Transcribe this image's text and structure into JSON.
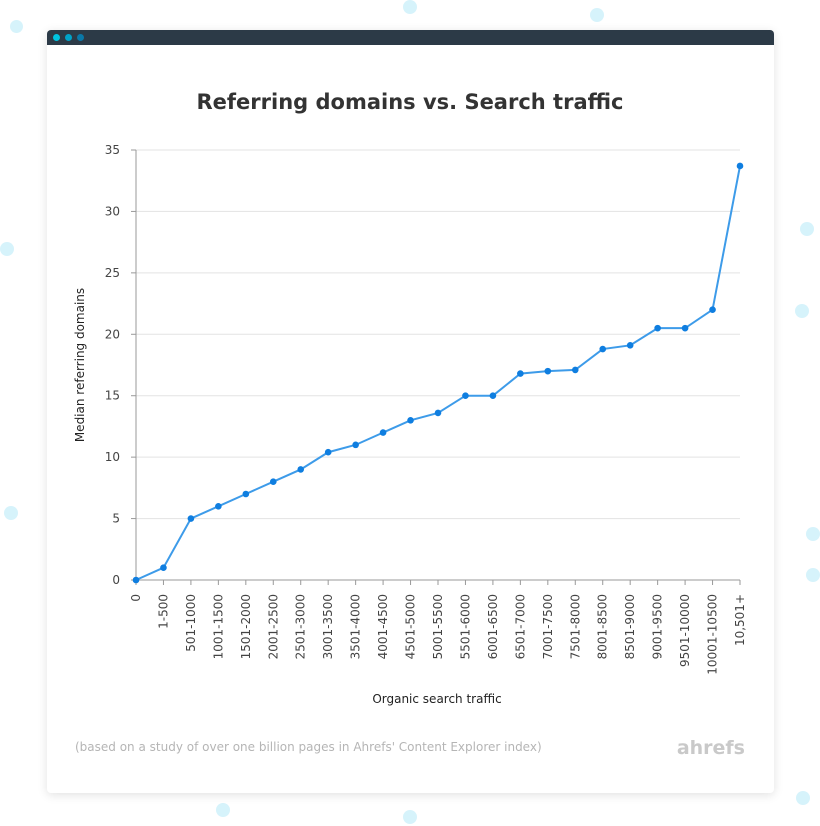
{
  "window": {
    "dots": [
      "#00c3e0",
      "#00a3c9",
      "#0a78a8"
    ],
    "titlebar_color": "#2c3a47"
  },
  "chart_data": {
    "type": "line",
    "title": "Referring domains vs. Search traffic",
    "xlabel": "Organic search traffic",
    "ylabel": "Median referring domains",
    "categories": [
      "0",
      "1-500",
      "501-1000",
      "1001-1500",
      "1501-2000",
      "2001-2500",
      "2501-3000",
      "3001-3500",
      "3501-4000",
      "4001-4500",
      "4501-5000",
      "5001-5500",
      "5501-6000",
      "6001-6500",
      "6501-7000",
      "7001-7500",
      "7501-8000",
      "8001-8500",
      "8501-9000",
      "9001-9500",
      "9501-10000",
      "10001-10500",
      "10,501+"
    ],
    "values": [
      0,
      1,
      5,
      6,
      7,
      8,
      9,
      10.4,
      11,
      12,
      13,
      13.6,
      15,
      15,
      16.8,
      17,
      17.1,
      18.8,
      19.1,
      20.5,
      20.5,
      22,
      33.7
    ],
    "ylim": [
      0,
      35
    ],
    "yticks": [
      "0",
      "5",
      "10",
      "15",
      "20",
      "25",
      "30",
      "35"
    ],
    "grid": "horizontal",
    "line_color": "#3d9be9",
    "marker_color": "#0f7ee0"
  },
  "footer": {
    "note": "(based on a study of over one billion pages in Ahrefs' Content Explorer index)",
    "logo": "ahrefs"
  }
}
